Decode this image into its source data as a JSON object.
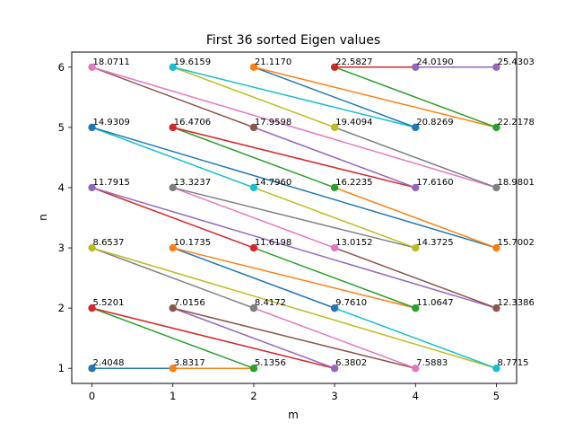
{
  "chart_data": {
    "type": "scatter",
    "title": "First 36 sorted Eigen values",
    "xlabel": "m",
    "ylabel": "n",
    "xlim": [
      -0.25,
      5.25
    ],
    "ylim": [
      0.75,
      6.25
    ],
    "xticks": [
      "0",
      "1",
      "2",
      "3",
      "4",
      "5"
    ],
    "yticks": [
      "1",
      "2",
      "3",
      "4",
      "5",
      "6"
    ],
    "grid": false,
    "legend": "none",
    "points": [
      {
        "m": 0,
        "n": 1,
        "label": "2.4048"
      },
      {
        "m": 1,
        "n": 1,
        "label": "3.8317"
      },
      {
        "m": 2,
        "n": 1,
        "label": "5.1356"
      },
      {
        "m": 0,
        "n": 2,
        "label": "5.5201"
      },
      {
        "m": 3,
        "n": 1,
        "label": "6.3802"
      },
      {
        "m": 1,
        "n": 2,
        "label": "7.0156"
      },
      {
        "m": 4,
        "n": 1,
        "label": "7.5883"
      },
      {
        "m": 2,
        "n": 2,
        "label": "8.4172"
      },
      {
        "m": 0,
        "n": 3,
        "label": "8.6537"
      },
      {
        "m": 5,
        "n": 1,
        "label": "8.7715"
      },
      {
        "m": 3,
        "n": 2,
        "label": "9.7610"
      },
      {
        "m": 1,
        "n": 3,
        "label": "10.1735"
      },
      {
        "m": 4,
        "n": 2,
        "label": "11.0647"
      },
      {
        "m": 2,
        "n": 3,
        "label": "11.6198"
      },
      {
        "m": 0,
        "n": 4,
        "label": "11.7915"
      },
      {
        "m": 5,
        "n": 2,
        "label": "12.3386"
      },
      {
        "m": 3,
        "n": 3,
        "label": "13.0152"
      },
      {
        "m": 1,
        "n": 4,
        "label": "13.3237"
      },
      {
        "m": 4,
        "n": 3,
        "label": "14.3725"
      },
      {
        "m": 2,
        "n": 4,
        "label": "14.7960"
      },
      {
        "m": 0,
        "n": 5,
        "label": "14.9309"
      },
      {
        "m": 5,
        "n": 3,
        "label": "15.7002"
      },
      {
        "m": 3,
        "n": 4,
        "label": "16.2235"
      },
      {
        "m": 1,
        "n": 5,
        "label": "16.4706"
      },
      {
        "m": 4,
        "n": 4,
        "label": "17.6160"
      },
      {
        "m": 2,
        "n": 5,
        "label": "17.9598"
      },
      {
        "m": 0,
        "n": 6,
        "label": "18.0711"
      },
      {
        "m": 5,
        "n": 4,
        "label": "18.9801"
      },
      {
        "m": 3,
        "n": 5,
        "label": "19.4094"
      },
      {
        "m": 1,
        "n": 6,
        "label": "19.6159"
      },
      {
        "m": 4,
        "n": 5,
        "label": "20.8269"
      },
      {
        "m": 2,
        "n": 6,
        "label": "21.1170"
      },
      {
        "m": 5,
        "n": 5,
        "label": "22.2178"
      },
      {
        "m": 3,
        "n": 6,
        "label": "22.5827"
      },
      {
        "m": 4,
        "n": 6,
        "label": "24.0190"
      },
      {
        "m": 5,
        "n": 6,
        "label": "25.4303"
      }
    ],
    "colors": [
      "#1f77b4",
      "#ff7f0e",
      "#2ca02c",
      "#d62728",
      "#9467bd",
      "#8c564b",
      "#e377c2",
      "#7f7f7f",
      "#bcbd22",
      "#17becf"
    ]
  }
}
